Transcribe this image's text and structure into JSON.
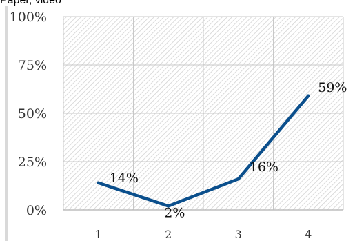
{
  "top_text": "Paper, video",
  "chart_data": {
    "type": "line",
    "categories": [
      "1",
      "2",
      "3",
      "4"
    ],
    "series": [
      {
        "values": [
          14,
          2,
          16,
          59
        ],
        "labels": [
          "14%",
          "2%",
          "16%",
          "59%"
        ],
        "color": "#0b4f8c"
      }
    ],
    "yticks": [
      "0%",
      "25%",
      "50%",
      "75%",
      "100%"
    ],
    "ylim": [
      0,
      100
    ],
    "title": "",
    "xlabel": "",
    "ylabel": "",
    "grid": true,
    "background": "hatched"
  }
}
